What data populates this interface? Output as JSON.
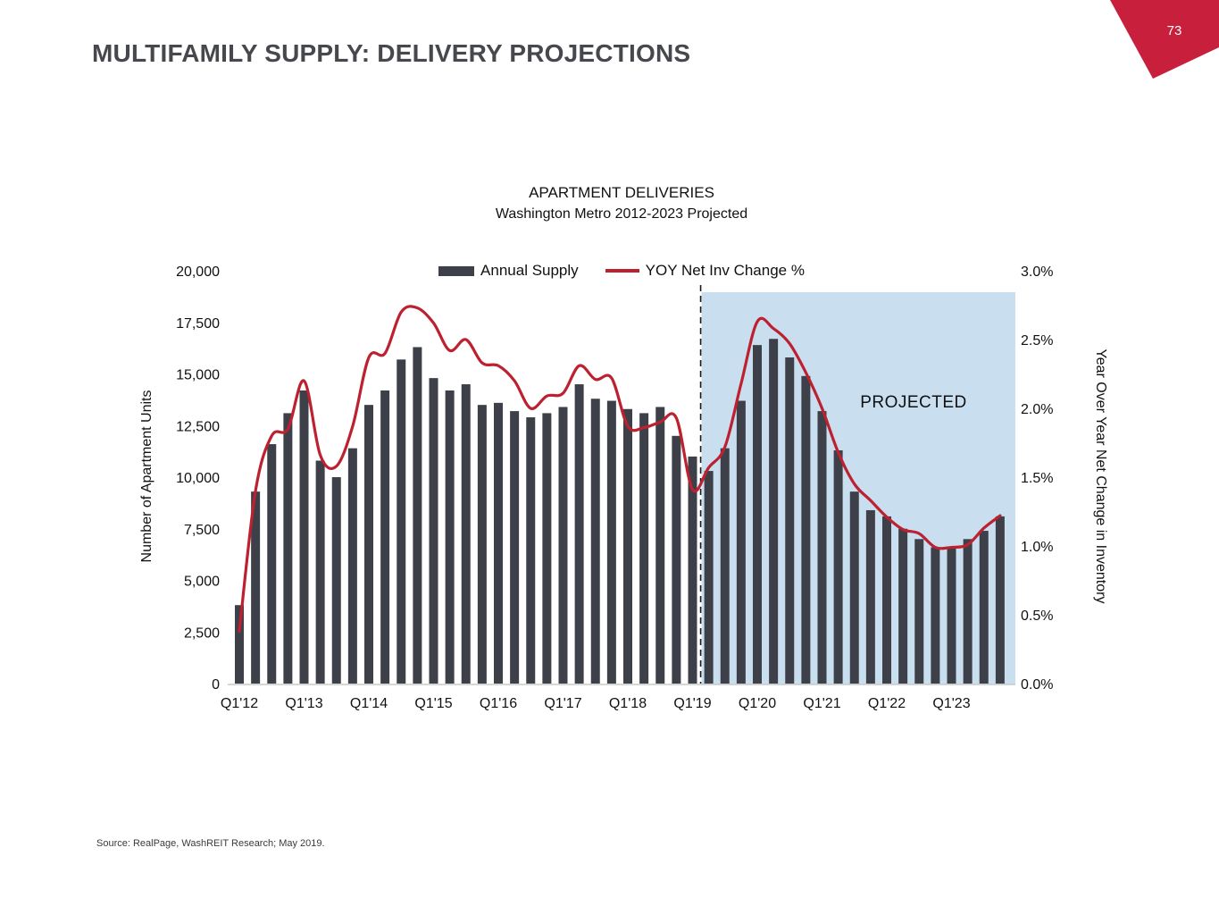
{
  "slide": {
    "title": "MULTIFAMILY SUPPLY: DELIVERY PROJECTIONS",
    "page_number": "73",
    "source": "Source: RealPage, WashREIT Research; May 2019.",
    "corner_flag_color": "#c8203c"
  },
  "chart_data": {
    "type": "bar",
    "combo": "bar+line",
    "title": "APARTMENT DELIVERIES",
    "subtitle": "Washington Metro 2012-2023 Projected",
    "categories": [
      "Q1'12",
      "Q2'12",
      "Q3'12",
      "Q4'12",
      "Q1'13",
      "Q2'13",
      "Q3'13",
      "Q4'13",
      "Q1'14",
      "Q2'14",
      "Q3'14",
      "Q4'14",
      "Q1'15",
      "Q2'15",
      "Q3'15",
      "Q4'15",
      "Q1'16",
      "Q2'16",
      "Q3'16",
      "Q4'16",
      "Q1'17",
      "Q2'17",
      "Q3'17",
      "Q4'17",
      "Q1'18",
      "Q2'18",
      "Q3'18",
      "Q4'18",
      "Q1'19",
      "Q2'19",
      "Q3'19",
      "Q4'19",
      "Q1'20",
      "Q2'20",
      "Q3'20",
      "Q4'20",
      "Q1'21",
      "Q2'21",
      "Q3'21",
      "Q4'21",
      "Q1'22",
      "Q2'22",
      "Q3'22",
      "Q4'22",
      "Q1'23",
      "Q2'23",
      "Q3'23",
      "Q4'23"
    ],
    "x_tick_labels": [
      "Q1'12",
      "Q1'13",
      "Q1'14",
      "Q1'15",
      "Q1'16",
      "Q1'17",
      "Q1'18",
      "Q1'19",
      "Q1'20",
      "Q1'21",
      "Q1'22",
      "Q1'23"
    ],
    "series": [
      {
        "name": "Annual Supply",
        "type": "bar",
        "axis": "left",
        "color": "#3d4049",
        "values": [
          3800,
          9300,
          11600,
          13100,
          14200,
          10800,
          10000,
          11400,
          13500,
          14200,
          15700,
          16300,
          14800,
          14200,
          14500,
          13500,
          13600,
          13200,
          12900,
          13100,
          13400,
          14500,
          13800,
          13700,
          13300,
          13100,
          13400,
          12000,
          11000,
          10300,
          11400,
          13700,
          16400,
          16700,
          15800,
          14900,
          13200,
          11300,
          9300,
          8400,
          8100,
          7500,
          7000,
          6600,
          6600,
          7000,
          7400,
          8100
        ]
      },
      {
        "name": "YOY Net Inv Change %",
        "type": "line",
        "axis": "right",
        "color": "#bd2130",
        "values": [
          0.38,
          1.4,
          1.8,
          1.85,
          2.2,
          1.66,
          1.58,
          1.87,
          2.37,
          2.4,
          2.7,
          2.73,
          2.62,
          2.42,
          2.5,
          2.33,
          2.31,
          2.2,
          2.0,
          2.09,
          2.11,
          2.31,
          2.21,
          2.22,
          1.87,
          1.86,
          1.9,
          1.93,
          1.41,
          1.57,
          1.72,
          2.18,
          2.63,
          2.58,
          2.47,
          2.26,
          2.0,
          1.68,
          1.45,
          1.33,
          1.21,
          1.12,
          1.09,
          0.99,
          0.99,
          1.01,
          1.13,
          1.22
        ]
      }
    ],
    "left_axis": {
      "label": "Number of Apartment Units",
      "min": 0,
      "max": 20000,
      "step": 2500,
      "tick_labels": [
        "0",
        "2,500",
        "5,000",
        "7,500",
        "10,000",
        "12,500",
        "15,000",
        "17,500",
        "20,000"
      ]
    },
    "right_axis": {
      "label": "Year Over Year Net Change in Inventory",
      "min": 0.0,
      "max": 3.0,
      "step": 0.5,
      "tick_labels": [
        "0.0%",
        "0.5%",
        "1.0%",
        "1.5%",
        "2.0%",
        "2.5%",
        "3.0%"
      ]
    },
    "projection": {
      "label": "PROJECTED",
      "start_category": "Q2'19",
      "band_color": "#c9dff0",
      "divider_style": "dashed-black-vertical"
    },
    "grid": "off",
    "legend_position": "top-center"
  }
}
